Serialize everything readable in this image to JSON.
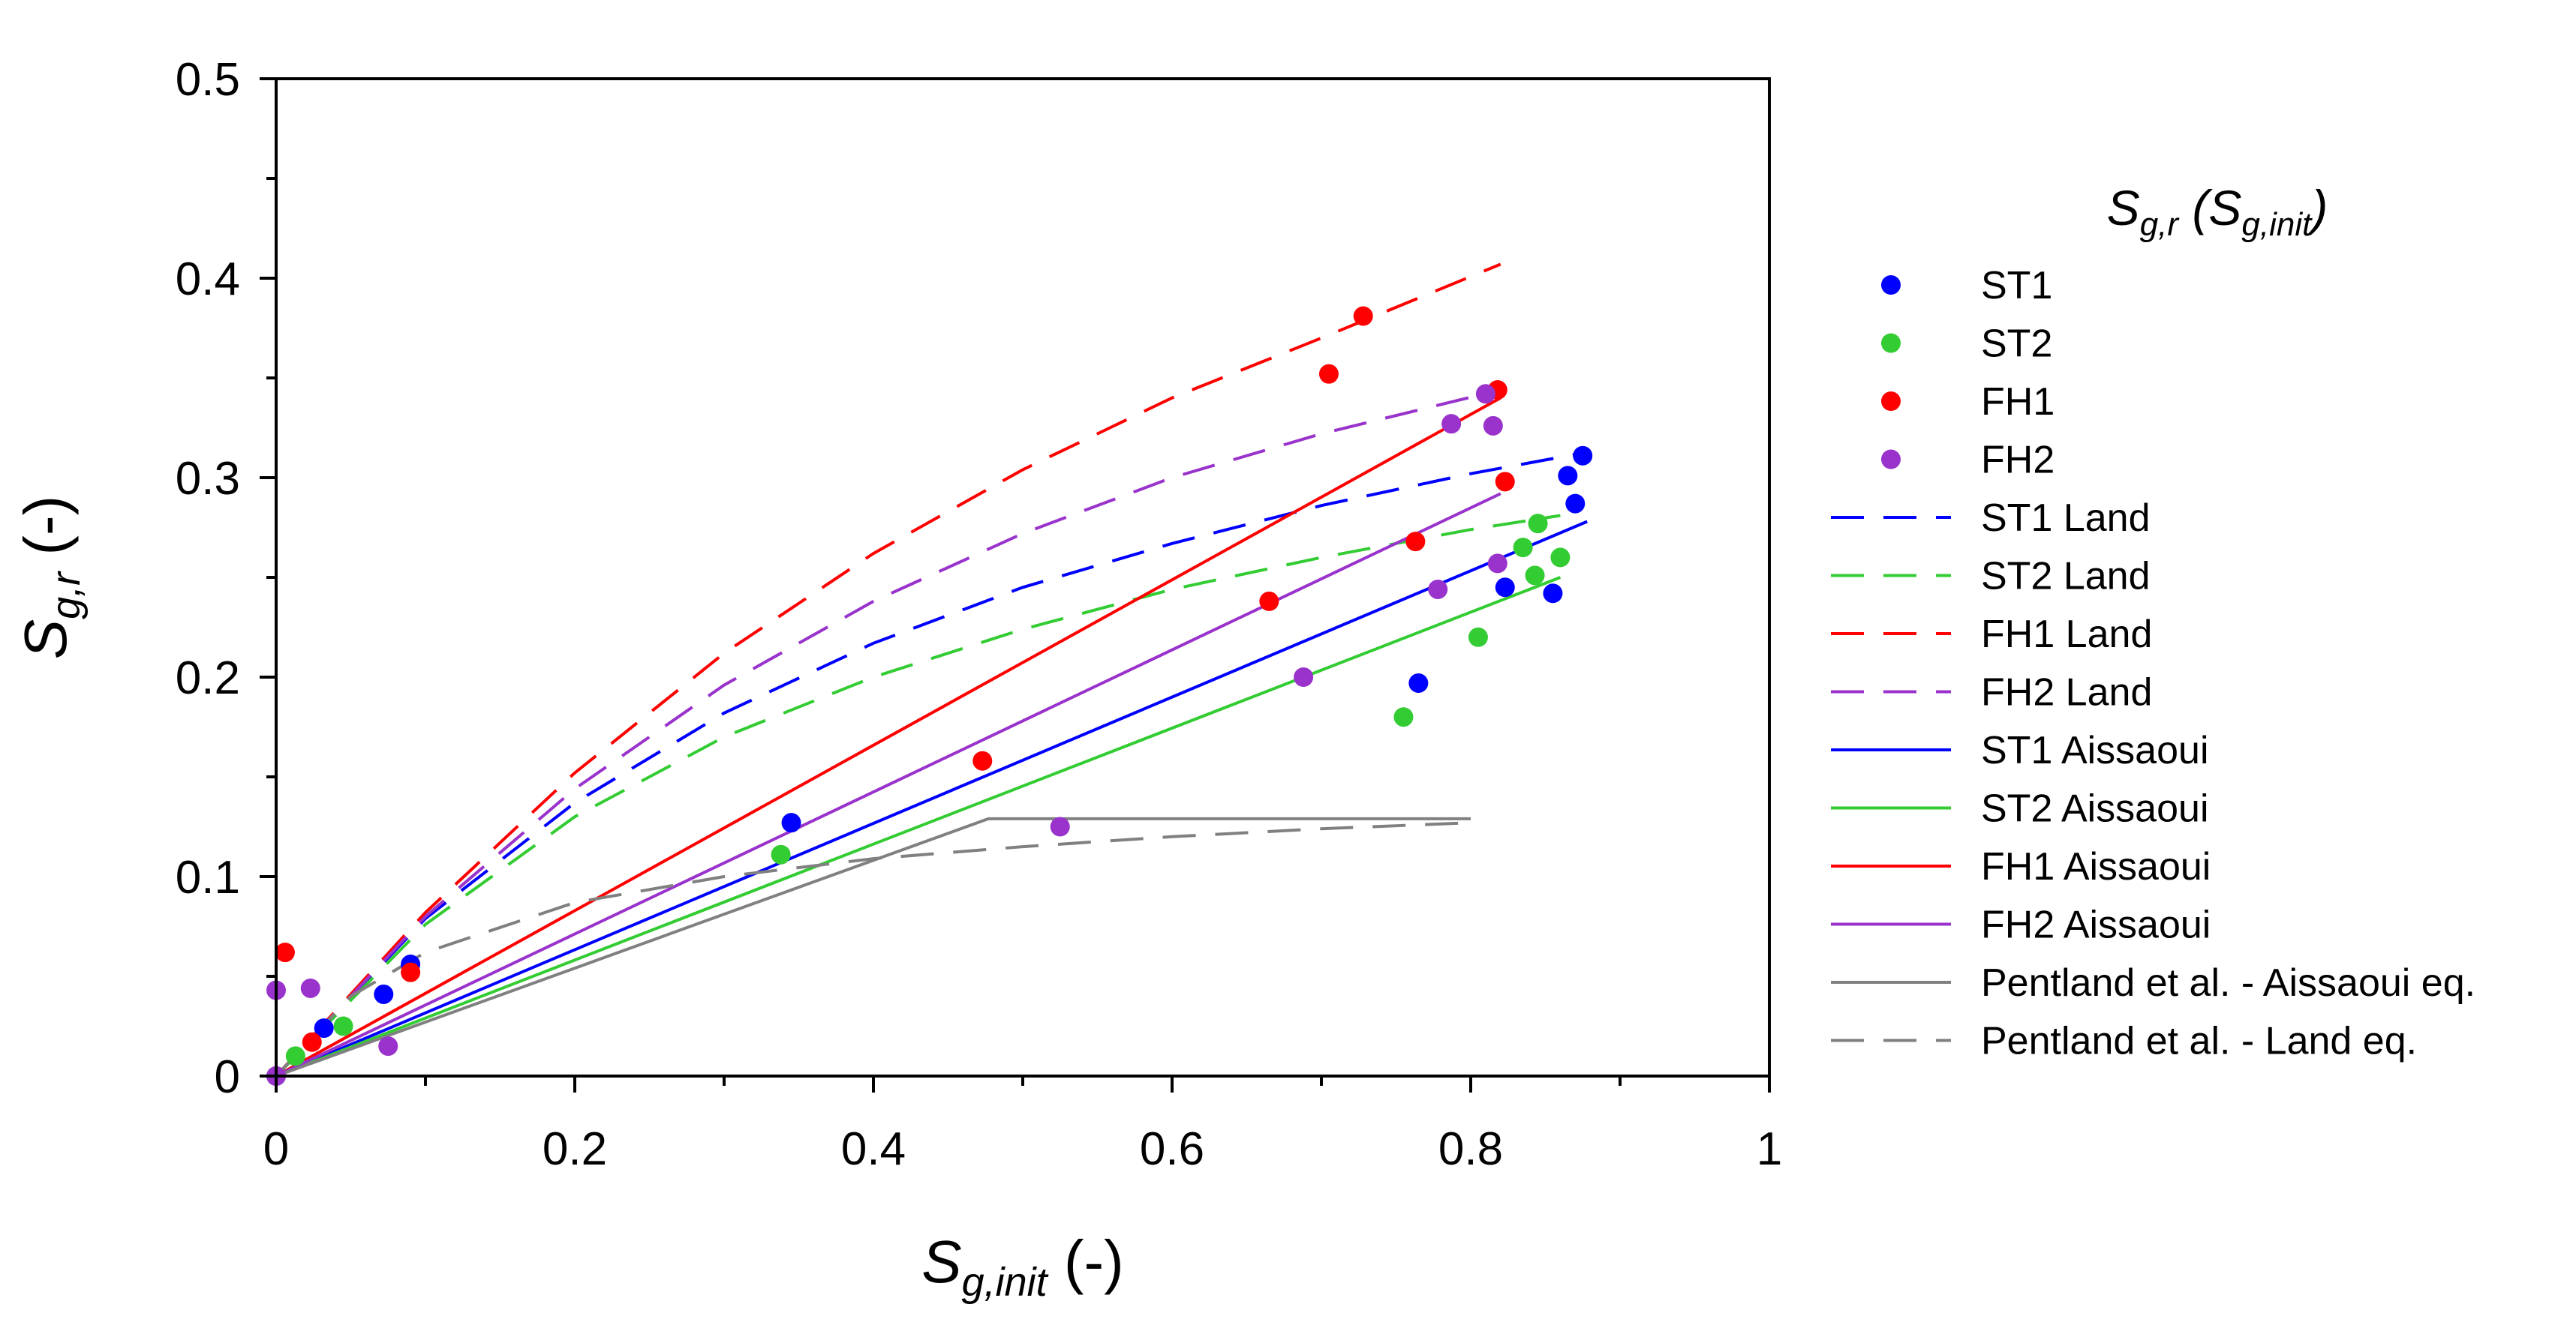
{
  "chart_data": {
    "type": "scatter",
    "title": "",
    "xlabel": {
      "main": "S",
      "sub": "g,init",
      "suffix": " (-)"
    },
    "ylabel": {
      "main": "S",
      "sub": "g,r",
      "suffix": " (-)"
    },
    "xlim": [
      0,
      1
    ],
    "ylim": [
      0,
      0.5
    ],
    "x_ticks": [
      0,
      0.2,
      0.4,
      0.6,
      0.8,
      1
    ],
    "x_tick_labels": [
      "0",
      "0.2",
      "0.4",
      "0.6",
      "0.8",
      "1"
    ],
    "y_ticks": [
      0,
      0.1,
      0.2,
      0.3,
      0.4,
      0.5
    ],
    "y_tick_labels": [
      "0",
      "0.1",
      "0.2",
      "0.3",
      "0.4",
      "0.5"
    ],
    "x_minor_step": 0.1,
    "y_minor_step": 0.05,
    "legend_title": "Sg,r (Sg,init)",
    "legend_title_parts": {
      "a": "S",
      "a_sub": "g,r",
      "b": " (S",
      "b_sub": "g,init",
      "c": ")"
    },
    "legend_position": "right",
    "grid": false,
    "series": [
      {
        "name": "ST1",
        "kind": "points",
        "color": "#0000ff",
        "points": [
          [
            0,
            0
          ],
          [
            0.032,
            0.024
          ],
          [
            0.072,
            0.041
          ],
          [
            0.09,
            0.056
          ],
          [
            0.345,
            0.127
          ],
          [
            0.765,
            0.197
          ],
          [
            0.823,
            0.245
          ],
          [
            0.855,
            0.242
          ],
          [
            0.865,
            0.301
          ],
          [
            0.87,
            0.287
          ],
          [
            0.875,
            0.311
          ]
        ]
      },
      {
        "name": "ST2",
        "kind": "points",
        "color": "#33cc33",
        "points": [
          [
            0,
            0
          ],
          [
            0.013,
            0.01
          ],
          [
            0.045,
            0.025
          ],
          [
            0.338,
            0.111
          ],
          [
            0.755,
            0.18
          ],
          [
            0.805,
            0.22
          ],
          [
            0.835,
            0.265
          ],
          [
            0.843,
            0.251
          ],
          [
            0.845,
            0.277
          ],
          [
            0.86,
            0.26
          ]
        ]
      },
      {
        "name": "FH1",
        "kind": "points",
        "color": "#ff0000",
        "points": [
          [
            0.006,
            0.062
          ],
          [
            0.024,
            0.017
          ],
          [
            0.09,
            0.052
          ],
          [
            0.473,
            0.158
          ],
          [
            0.665,
            0.238
          ],
          [
            0.705,
            0.352
          ],
          [
            0.728,
            0.381
          ],
          [
            0.763,
            0.268
          ],
          [
            0.818,
            0.344
          ],
          [
            0.823,
            0.298
          ]
        ]
      },
      {
        "name": "FH2",
        "kind": "points",
        "color": "#9933cc",
        "points": [
          [
            0,
            0.043
          ],
          [
            0,
            0
          ],
          [
            0.023,
            0.044
          ],
          [
            0.075,
            0.015
          ],
          [
            0.525,
            0.125
          ],
          [
            0.688,
            0.2
          ],
          [
            0.778,
            0.244
          ],
          [
            0.787,
            0.327
          ],
          [
            0.81,
            0.342
          ],
          [
            0.815,
            0.326
          ],
          [
            0.818,
            0.257
          ]
        ]
      },
      {
        "name": "ST1 Land",
        "kind": "line",
        "dash": "dash",
        "color": "#0000ff",
        "points": [
          [
            0,
            0
          ],
          [
            0.1,
            0.079
          ],
          [
            0.2,
            0.137
          ],
          [
            0.3,
            0.182
          ],
          [
            0.4,
            0.217
          ],
          [
            0.5,
            0.245
          ],
          [
            0.6,
            0.267
          ],
          [
            0.7,
            0.286
          ],
          [
            0.8,
            0.302
          ],
          [
            0.88,
            0.313
          ]
        ]
      },
      {
        "name": "ST2 Land",
        "kind": "line",
        "dash": "dash",
        "color": "#33cc33",
        "points": [
          [
            0,
            0
          ],
          [
            0.1,
            0.076
          ],
          [
            0.2,
            0.13
          ],
          [
            0.3,
            0.17
          ],
          [
            0.4,
            0.2
          ],
          [
            0.5,
            0.224
          ],
          [
            0.6,
            0.244
          ],
          [
            0.7,
            0.26
          ],
          [
            0.8,
            0.274
          ],
          [
            0.86,
            0.281
          ]
        ]
      },
      {
        "name": "FH1 Land",
        "kind": "line",
        "dash": "dash",
        "color": "#ff0000",
        "points": [
          [
            0,
            0
          ],
          [
            0.1,
            0.082
          ],
          [
            0.2,
            0.152
          ],
          [
            0.3,
            0.212
          ],
          [
            0.4,
            0.262
          ],
          [
            0.5,
            0.304
          ],
          [
            0.6,
            0.34
          ],
          [
            0.7,
            0.37
          ],
          [
            0.82,
            0.407
          ]
        ]
      },
      {
        "name": "FH2 Land",
        "kind": "line",
        "dash": "dash",
        "color": "#9933cc",
        "points": [
          [
            0,
            0
          ],
          [
            0.1,
            0.08
          ],
          [
            0.2,
            0.144
          ],
          [
            0.3,
            0.196
          ],
          [
            0.4,
            0.238
          ],
          [
            0.5,
            0.272
          ],
          [
            0.6,
            0.3
          ],
          [
            0.7,
            0.322
          ],
          [
            0.82,
            0.344
          ]
        ]
      },
      {
        "name": "ST1 Aissaoui",
        "kind": "line",
        "dash": "solid",
        "color": "#0000ff",
        "points": [
          [
            0,
            0
          ],
          [
            0.878,
            0.278
          ]
        ]
      },
      {
        "name": "ST2 Aissaoui",
        "kind": "line",
        "dash": "solid",
        "color": "#33cc33",
        "points": [
          [
            0,
            0
          ],
          [
            0.86,
            0.25
          ]
        ]
      },
      {
        "name": "FH1 Aissaoui",
        "kind": "line",
        "dash": "solid",
        "color": "#ff0000",
        "points": [
          [
            0,
            0
          ],
          [
            0.82,
            0.34
          ]
        ]
      },
      {
        "name": "FH2 Aissaoui",
        "kind": "line",
        "dash": "solid",
        "color": "#9933cc",
        "points": [
          [
            0,
            0
          ],
          [
            0.82,
            0.292
          ]
        ]
      },
      {
        "name": "Pentland et al. - Aissaoui eq.",
        "kind": "line",
        "dash": "solid",
        "color": "#808080",
        "points": [
          [
            0,
            0
          ],
          [
            0.477,
            0.129
          ],
          [
            0.8,
            0.129
          ]
        ]
      },
      {
        "name": "Pentland et al. - Land eq.",
        "kind": "line",
        "dash": "dash",
        "color": "#808080",
        "points": [
          [
            0,
            0
          ],
          [
            0.05,
            0.04
          ],
          [
            0.1,
            0.062
          ],
          [
            0.2,
            0.087
          ],
          [
            0.3,
            0.1
          ],
          [
            0.4,
            0.109
          ],
          [
            0.5,
            0.115
          ],
          [
            0.6,
            0.12
          ],
          [
            0.7,
            0.124
          ],
          [
            0.8,
            0.127
          ]
        ]
      }
    ]
  }
}
